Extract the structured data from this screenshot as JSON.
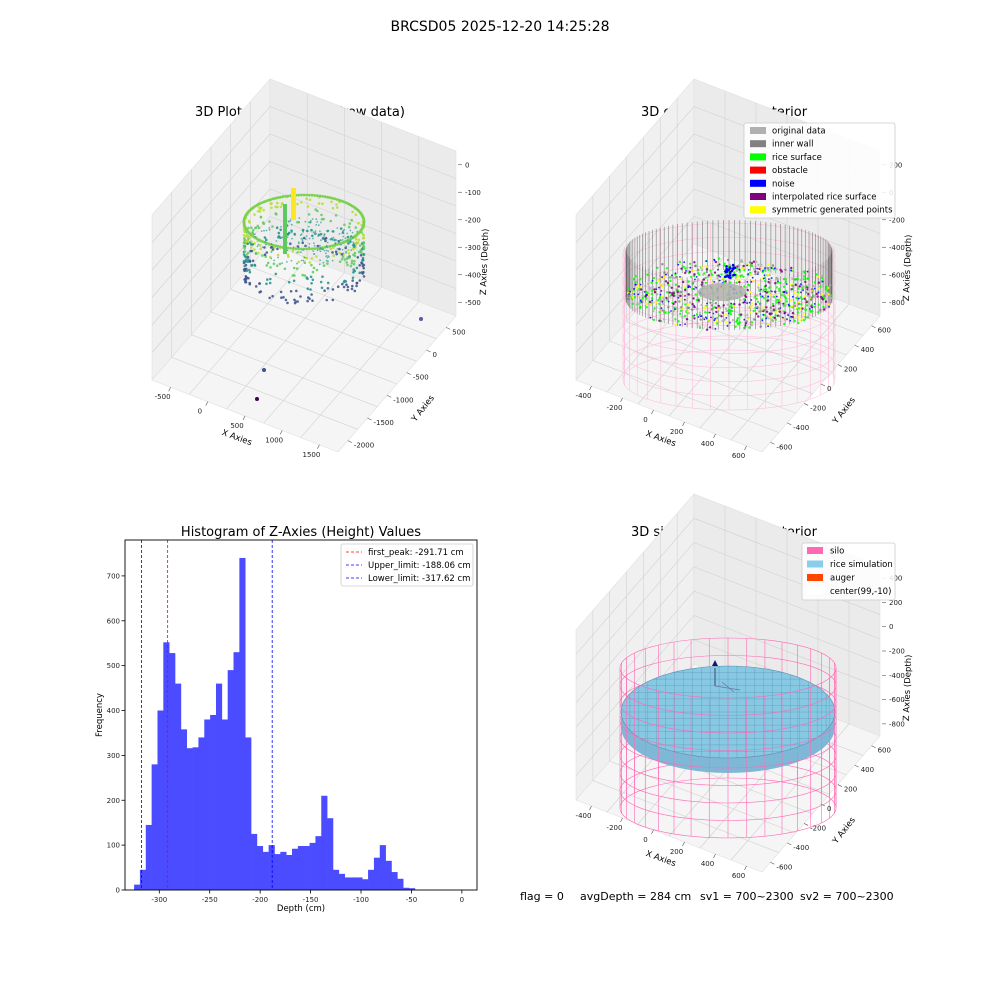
{
  "figure": {
    "suptitle": "BRCSD05 2025-12-20 14:25:28",
    "status": {
      "flag": "flag = 0",
      "avg_depth": "avgDepth = 284 cm",
      "sv1": "sv1 = 700~2300",
      "sv2": "sv2 = 700~2300"
    }
  },
  "panels": {
    "raw": {
      "title": "3D Plot of Silo Interior(row data)",
      "xlabel": "X Axies",
      "ylabel": "Y Axies",
      "zlabel": "Z Axies (Depth)",
      "xticks": [
        "-500",
        "0",
        "500",
        "1000",
        "1500"
      ],
      "yticks": [
        "500",
        "0",
        "-500",
        "-1000",
        "-1500",
        "-2000"
      ],
      "zticks": [
        "0",
        "-100",
        "-200",
        "-300",
        "-400",
        "-500"
      ]
    },
    "classify": {
      "title": "3D classify of Silo Interior",
      "xlabel": "X Axies",
      "ylabel": "Y Axies",
      "zlabel": "Z Axies (Depth)",
      "xticks": [
        "-400",
        "-200",
        "0",
        "200",
        "400",
        "600"
      ],
      "yticks": [
        "600",
        "400",
        "200",
        "0",
        "-200",
        "-400",
        "-600"
      ],
      "zticks": [
        "200",
        "0",
        "-200",
        "-400",
        "-600",
        "-800"
      ],
      "legend": [
        {
          "label": "original data",
          "color": "#b0b0b0"
        },
        {
          "label": "inner wall",
          "color": "#808080"
        },
        {
          "label": "rice surface",
          "color": "#00ff00"
        },
        {
          "label": "obstacle",
          "color": "#ff0000"
        },
        {
          "label": "noise",
          "color": "#0000ff"
        },
        {
          "label": "interpolated rice surface",
          "color": "#800080"
        },
        {
          "label": "symmetric generated points",
          "color": "#ffff00"
        }
      ]
    },
    "simulation": {
      "title": "3D simulation of Silo Interior",
      "xlabel": "X Axies",
      "ylabel": "Y Axies",
      "zlabel": "Z Axies (Depth)",
      "xticks": [
        "-400",
        "-200",
        "0",
        "200",
        "400",
        "600"
      ],
      "yticks": [
        "600",
        "400",
        "200",
        "0",
        "-200",
        "-400",
        "-600"
      ],
      "zticks": [
        "400",
        "200",
        "0",
        "-200",
        "-400",
        "-600",
        "-800"
      ],
      "legend": [
        {
          "label": "silo",
          "color": "#ff69b4"
        },
        {
          "label": "rice simulation",
          "color": "#87ceeb"
        },
        {
          "label": "auger",
          "color": "#ff4500"
        },
        {
          "label": "center(99,-10)",
          "color": "#ffffff"
        }
      ]
    }
  },
  "chart_data": {
    "type": "bar",
    "title": "Histogram of Z-Axies (Height) Values",
    "xlabel": "Depth (cm)",
    "ylabel": "Frequency",
    "xlim": [
      -334,
      15
    ],
    "ylim": [
      0,
      780
    ],
    "xticks": [
      -300,
      -250,
      -200,
      -150,
      -100,
      -50,
      0
    ],
    "yticks": [
      0,
      100,
      200,
      300,
      400,
      500,
      600,
      700
    ],
    "bar_color": "#4b4bff",
    "bin_start": -325,
    "bin_width": 5.8,
    "values": [
      12,
      45,
      145,
      280,
      400,
      552,
      528,
      460,
      358,
      316,
      318,
      340,
      380,
      390,
      460,
      380,
      490,
      530,
      740,
      340,
      125,
      98,
      85,
      100,
      80,
      85,
      78,
      92,
      98,
      98,
      105,
      120,
      210,
      160,
      45,
      36,
      28,
      28,
      28,
      24,
      45,
      72,
      100,
      65,
      40,
      25,
      5,
      4
    ],
    "lines": [
      {
        "label": "first_peak: -291.71 cm",
        "value": -291.71,
        "color": "#ff0000"
      },
      {
        "label": "Upper_limit: -188.06 cm",
        "value": -188.06,
        "color": "#0000ff"
      },
      {
        "label": "Lower_limit: -317.62 cm",
        "value": -317.62,
        "color": "#0000ff"
      }
    ],
    "legend_position": "top-right",
    "grid": false
  }
}
